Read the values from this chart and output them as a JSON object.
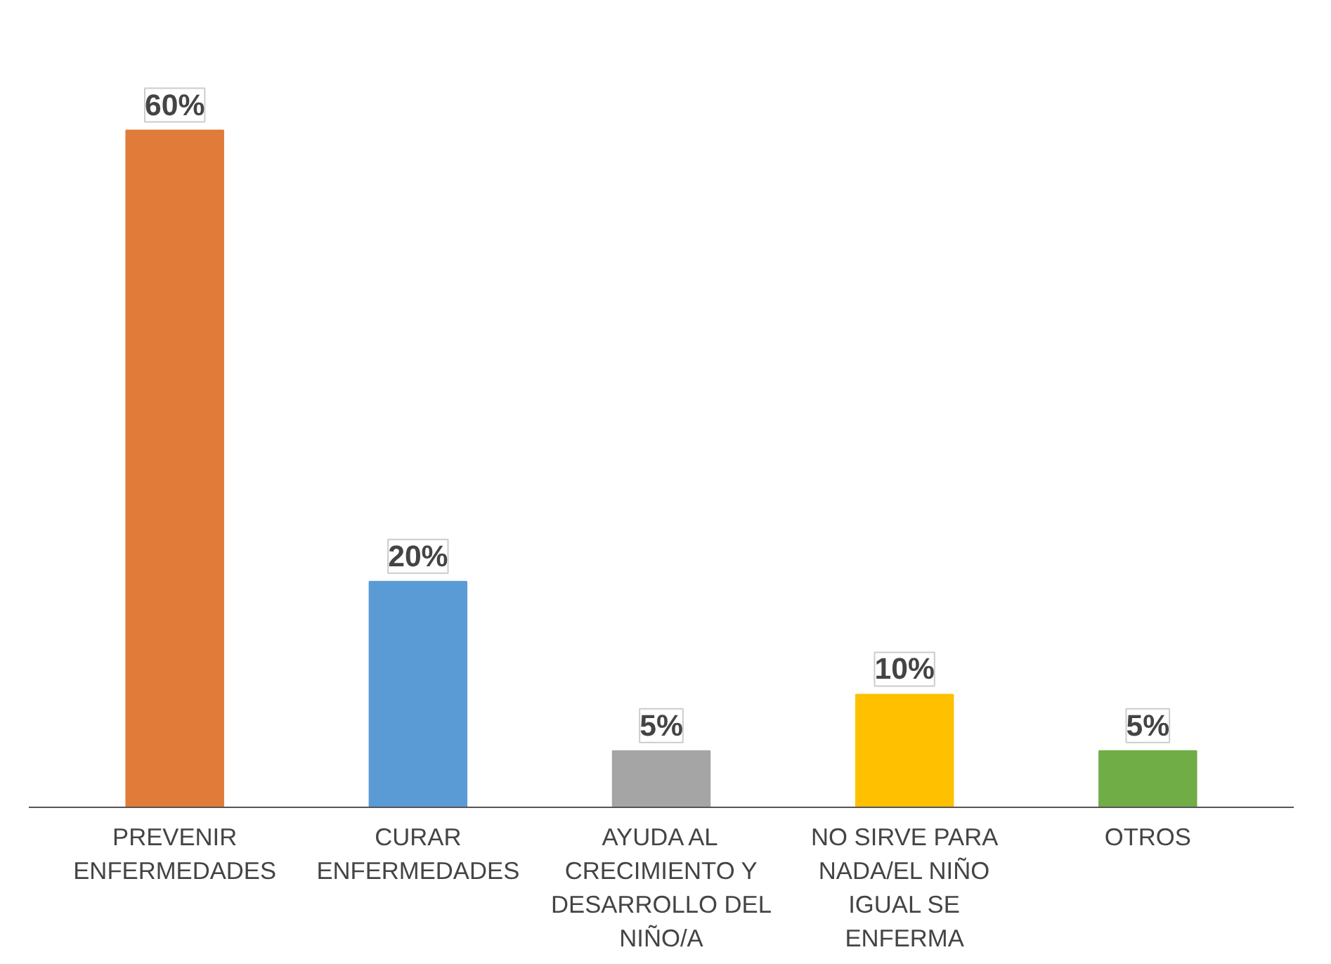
{
  "chart_data": {
    "type": "bar",
    "categories": [
      "PREVENIR ENFERMEDADES",
      "CURAR ENFERMEDADES",
      "AYUDA AL CRECIMIENTO Y DESARROLLO DEL NIÑO/A",
      "NO SIRVE PARA NADA/EL NIÑO IGUAL SE ENFERMA",
      "OTROS"
    ],
    "values": [
      60,
      20,
      5,
      10,
      5
    ],
    "colors": [
      "#e07b39",
      "#5b9bd5",
      "#a5a5a5",
      "#ffc000",
      "#70ad47"
    ],
    "value_labels": [
      "60%",
      "20%",
      "5%",
      "10%",
      "5%"
    ]
  }
}
